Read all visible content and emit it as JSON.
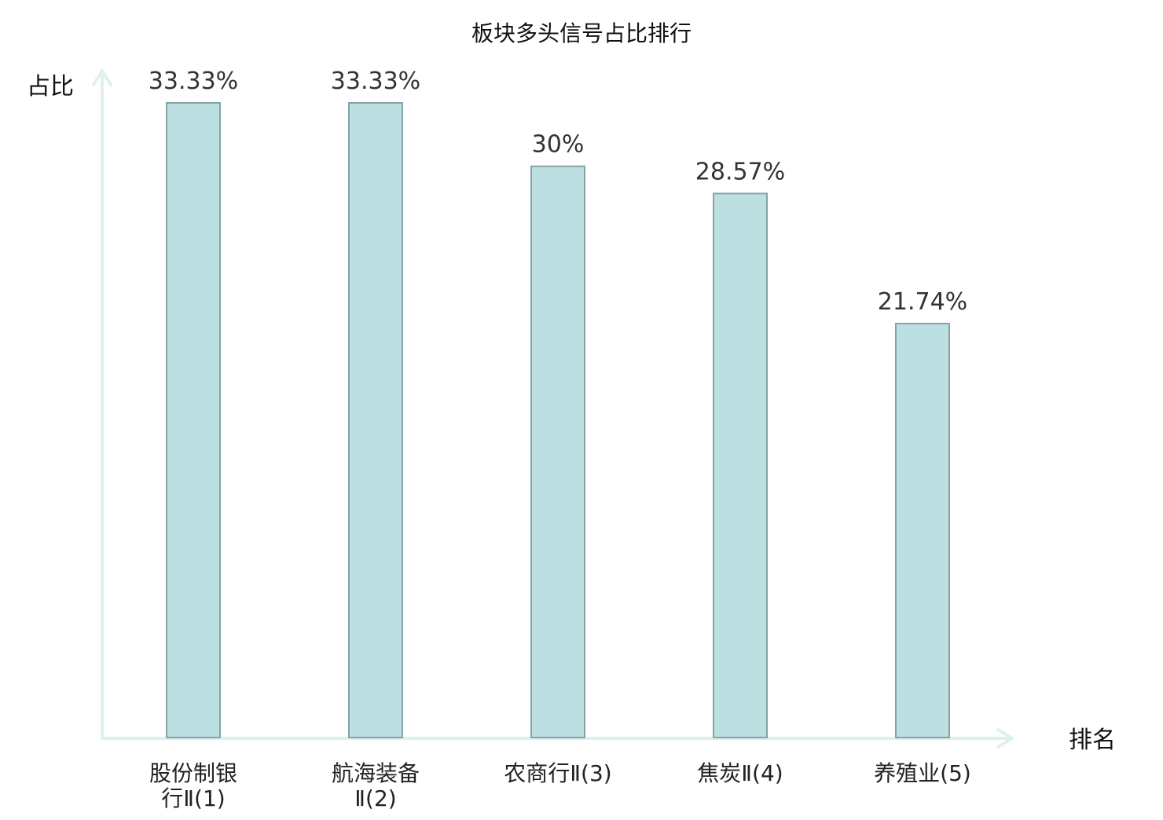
{
  "chart_data": {
    "type": "bar",
    "title": "板块多头信号占比排行",
    "ylabel": "占比",
    "xlabel": "排名",
    "categories": [
      [
        "股份制银",
        "行Ⅱ(1)"
      ],
      [
        "航海装备",
        "Ⅱ(2)"
      ],
      [
        "农商行Ⅱ(3)"
      ],
      [
        "焦炭Ⅱ(4)"
      ],
      [
        "养殖业(5)"
      ]
    ],
    "values": [
      33.33,
      33.33,
      30,
      28.57,
      21.74
    ],
    "value_labels": [
      "33.33%",
      "33.33%",
      "30%",
      "28.57%",
      "21.74%"
    ],
    "ylim": [
      0,
      33.33
    ],
    "grid": false,
    "highlight_index": 3,
    "colors": {
      "bar_fill": "#bce0e2",
      "bar_stroke": "#86a3a6",
      "axis": "#def1ef",
      "highlight_text": "#dd1111",
      "label_text": "#333333"
    }
  }
}
